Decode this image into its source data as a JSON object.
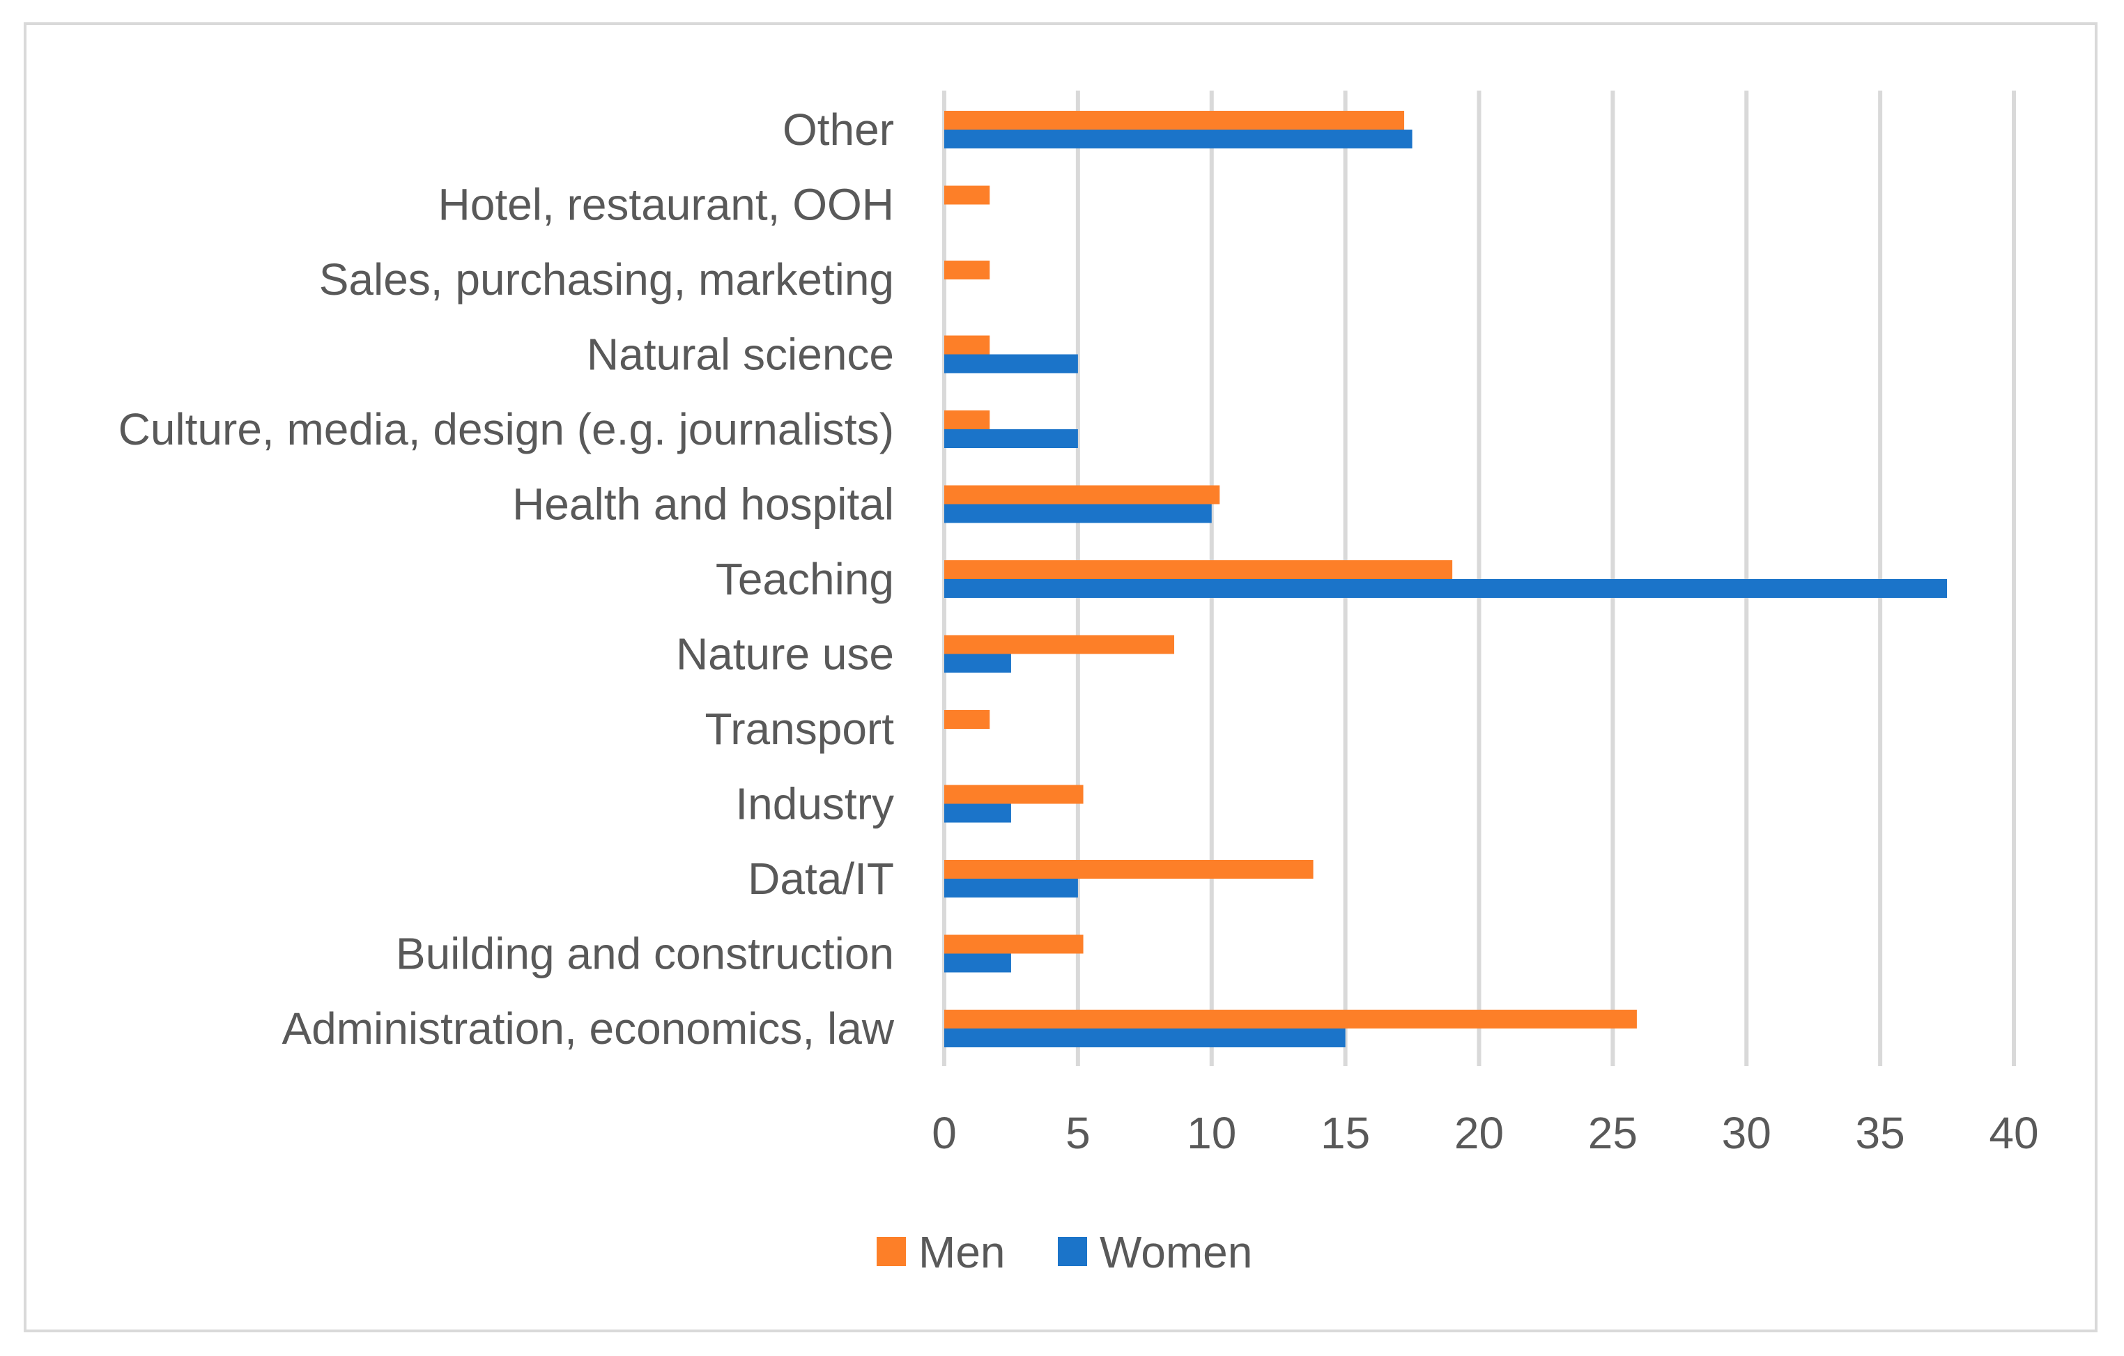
{
  "chart_data": {
    "type": "bar",
    "orientation": "horizontal",
    "title": "",
    "xlabel": "",
    "ylabel": "",
    "categories": [
      "Other",
      "Hotel, restaurant, OOH",
      "Sales, purchasing, marketing",
      "Natural science",
      "Culture, media, design (e.g. journalists)",
      "Health and hospital",
      "Teaching",
      "Nature use",
      "Transport",
      "Industry",
      "Data/IT",
      "Building and construction",
      "Administration, economics, law"
    ],
    "series": [
      {
        "name": "Men",
        "color": "#fd7f28",
        "values": [
          17.2,
          1.7,
          1.7,
          1.7,
          1.7,
          10.3,
          19.0,
          8.6,
          1.7,
          5.2,
          13.8,
          5.2,
          25.9
        ]
      },
      {
        "name": "Women",
        "color": "#1b74c9",
        "values": [
          17.5,
          0,
          0,
          5.0,
          5.0,
          10.0,
          37.5,
          2.5,
          0,
          2.5,
          5.0,
          2.5,
          15.0
        ]
      }
    ],
    "xlim": [
      0,
      40
    ],
    "x_ticks": [
      "0",
      "5",
      "10",
      "15",
      "20",
      "25",
      "30",
      "35",
      "40"
    ],
    "grid": true,
    "legend_position": "bottom",
    "legend": [
      "Men",
      "Women"
    ]
  }
}
